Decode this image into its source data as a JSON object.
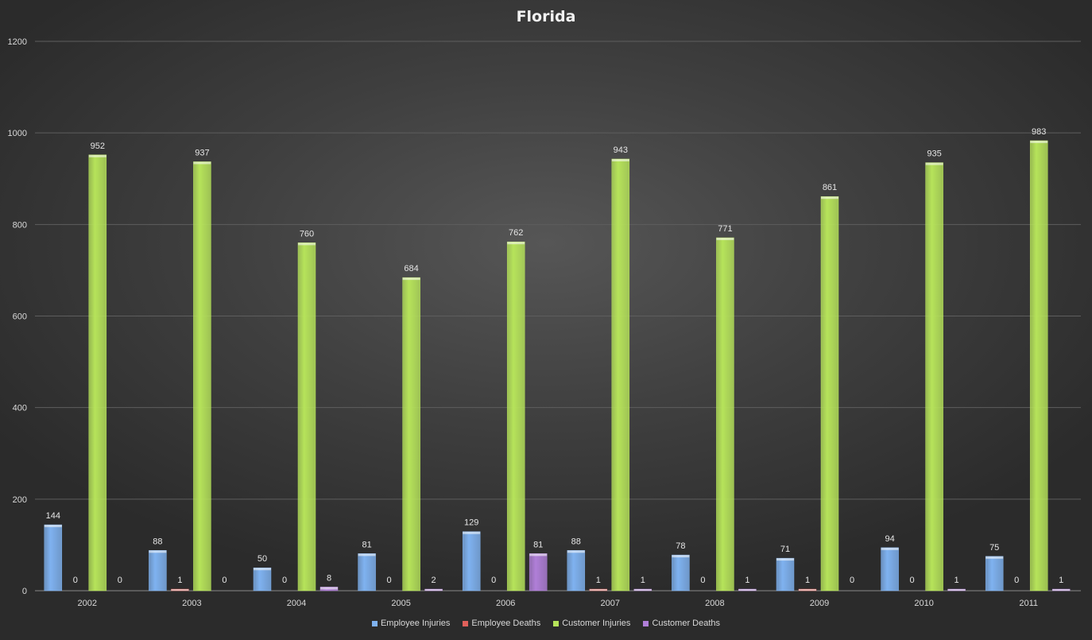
{
  "chart_data": {
    "type": "bar",
    "title": "Florida",
    "xlabel": "",
    "ylabel": "",
    "ylim": [
      0,
      1200
    ],
    "yticks": [
      0,
      200,
      400,
      600,
      800,
      1000,
      1200
    ],
    "grid": true,
    "legend_position": "bottom",
    "categories": [
      "2002",
      "2003",
      "2004",
      "2005",
      "2006",
      "2007",
      "2008",
      "2009",
      "2010",
      "2011"
    ],
    "series": [
      {
        "name": "Employee Injuries",
        "color": "#7fb2f0",
        "values": [
          144,
          88,
          50,
          81,
          129,
          88,
          78,
          71,
          94,
          75
        ]
      },
      {
        "name": "Employee Deaths",
        "color": "#e0605a",
        "values": [
          0,
          1,
          0,
          0,
          0,
          1,
          0,
          1,
          0,
          0
        ]
      },
      {
        "name": "Customer Injuries",
        "color": "#b6e35a",
        "values": [
          952,
          937,
          760,
          684,
          762,
          943,
          771,
          861,
          935,
          983
        ]
      },
      {
        "name": "Customer Deaths",
        "color": "#b07fd8",
        "values": [
          0,
          0,
          8,
          2,
          81,
          1,
          1,
          0,
          1,
          1
        ]
      }
    ]
  }
}
